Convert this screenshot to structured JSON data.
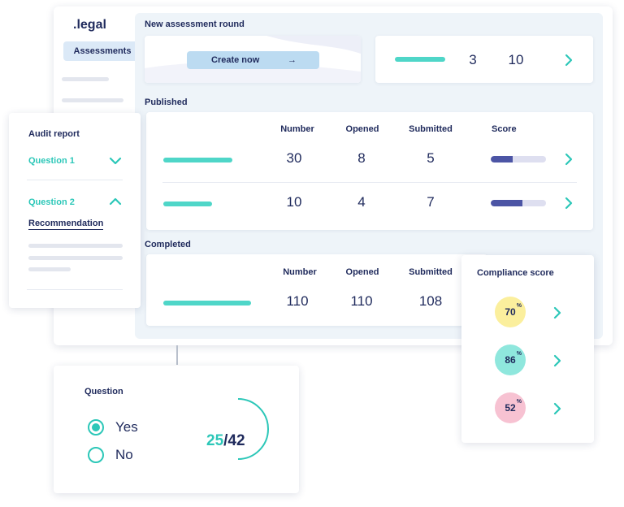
{
  "app": {
    "logo": ".legal"
  },
  "sidebar": {
    "active_item": "Assessments"
  },
  "new_round": {
    "title": "New assessment round",
    "create_button": "Create now",
    "arrow": "→",
    "count_a": "3",
    "count_b": "10"
  },
  "published": {
    "title": "Published",
    "headers": {
      "number": "Number",
      "opened": "Opened",
      "submitted": "Submitted",
      "score": "Score"
    },
    "rows": [
      {
        "number": "30",
        "opened": "8",
        "submitted": "5",
        "score_fraction": 0.4
      },
      {
        "number": "10",
        "opened": "4",
        "submitted": "7",
        "score_fraction": 0.58
      }
    ]
  },
  "completed": {
    "title": "Completed",
    "headers": {
      "number": "Number",
      "opened": "Opened",
      "submitted": "Submitted"
    },
    "row": {
      "number": "110",
      "opened": "110",
      "submitted": "108"
    }
  },
  "audit": {
    "title": "Audit report",
    "q1": "Question 1",
    "q2": "Question 2",
    "recommendation": "Recommendation"
  },
  "compliance": {
    "title": "Compliance score",
    "percent_symbol": "%",
    "items": [
      {
        "value": "70",
        "color": "#fbef9d"
      },
      {
        "value": "86",
        "color": "#8fe7dd"
      },
      {
        "value": "52",
        "color": "#f7c2d2"
      }
    ]
  },
  "question": {
    "title": "Question",
    "option_yes": "Yes",
    "option_no": "No",
    "selected": "Yes",
    "progress_current": "25",
    "progress_separator": "/",
    "progress_total": "42"
  },
  "colors": {
    "accent": "#2cc7b8",
    "navy": "#1f2a5c",
    "bg_panel": "#eef4f9",
    "score_fill": "#4c55a5"
  },
  "icons": [
    "chevron-right-icon",
    "chevron-down-icon",
    "chevron-up-icon",
    "arrow-right-icon",
    "radio-checked-icon",
    "radio-unchecked-icon"
  ]
}
